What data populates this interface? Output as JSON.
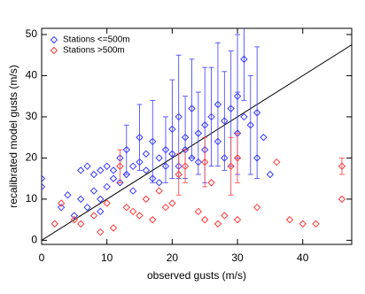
{
  "chart_data": {
    "type": "scatter",
    "x_label": "observed gusts (m/s)",
    "y_label": "recalibrated model gusts (m/s)",
    "xlim": [
      0,
      47.5
    ],
    "ylim": [
      -1,
      51.5
    ],
    "xticks": [
      0,
      10,
      20,
      30,
      40
    ],
    "yticks": [
      0,
      10,
      20,
      30,
      40,
      50
    ],
    "legend": "upper left",
    "reference_line": {
      "x": [
        0,
        47.5
      ],
      "y": [
        0,
        47.5
      ],
      "color": "#000000"
    },
    "series": [
      {
        "name": "Stations <=500m",
        "color": "#3b3bff",
        "x": [
          0,
          0,
          6,
          7,
          7,
          8,
          8,
          9,
          9,
          10,
          10,
          11,
          11,
          12,
          12,
          13,
          13,
          14,
          14,
          15,
          15,
          16,
          16,
          17,
          17,
          18,
          18,
          19,
          19,
          20,
          20,
          21,
          21,
          22,
          22,
          23,
          23,
          24,
          24,
          25,
          25,
          26,
          27,
          27,
          28,
          28,
          29,
          30,
          30,
          31,
          31,
          32,
          33,
          34,
          35,
          33,
          4,
          5,
          3,
          6,
          9
        ],
        "values": [
          15,
          13,
          17,
          18,
          8,
          12,
          16,
          17,
          10,
          13,
          18,
          15,
          17,
          14,
          20,
          16,
          22,
          18,
          12,
          19,
          25,
          17,
          21,
          15,
          24,
          20,
          14,
          22,
          18,
          21,
          27,
          18,
          30,
          22,
          25,
          20,
          32,
          26,
          19,
          28,
          22,
          30,
          24,
          33,
          29,
          20,
          32,
          26,
          35,
          30,
          44,
          28,
          31,
          25,
          16,
          20,
          11,
          6,
          8,
          10,
          7
        ],
        "yerr": [
          null,
          null,
          null,
          null,
          null,
          null,
          null,
          null,
          null,
          null,
          null,
          null,
          null,
          null,
          null,
          null,
          6,
          null,
          null,
          null,
          8,
          null,
          null,
          null,
          10,
          null,
          null,
          8,
          null,
          null,
          12,
          null,
          15,
          null,
          10,
          null,
          12,
          10,
          null,
          14,
          null,
          12,
          null,
          15,
          12,
          null,
          14,
          10,
          15,
          null,
          10,
          12,
          16,
          null,
          null,
          null,
          null,
          null,
          null,
          null,
          null
        ]
      },
      {
        "name": "Stations >500m",
        "color": "#ff3b3b",
        "x": [
          2,
          3,
          5,
          6,
          8,
          9,
          10,
          11,
          12,
          13,
          14,
          15,
          16,
          17,
          18,
          19,
          20,
          21,
          22,
          24,
          25,
          26,
          27,
          28,
          30,
          30,
          33,
          36,
          38,
          40,
          42,
          46,
          46,
          25,
          29
        ],
        "values": [
          4,
          9,
          5,
          4,
          6,
          2,
          9,
          3,
          18,
          8,
          7,
          6,
          10,
          5,
          12,
          8,
          9,
          16,
          18,
          7,
          5,
          14,
          4,
          6,
          5,
          20,
          8,
          19,
          5,
          4,
          4,
          18,
          10,
          19,
          18
        ],
        "yerr": [
          null,
          null,
          null,
          null,
          null,
          null,
          null,
          null,
          4,
          null,
          null,
          null,
          null,
          null,
          null,
          null,
          null,
          5,
          4,
          null,
          null,
          null,
          null,
          null,
          null,
          6,
          null,
          null,
          null,
          null,
          null,
          2,
          null,
          6,
          7
        ]
      }
    ]
  }
}
